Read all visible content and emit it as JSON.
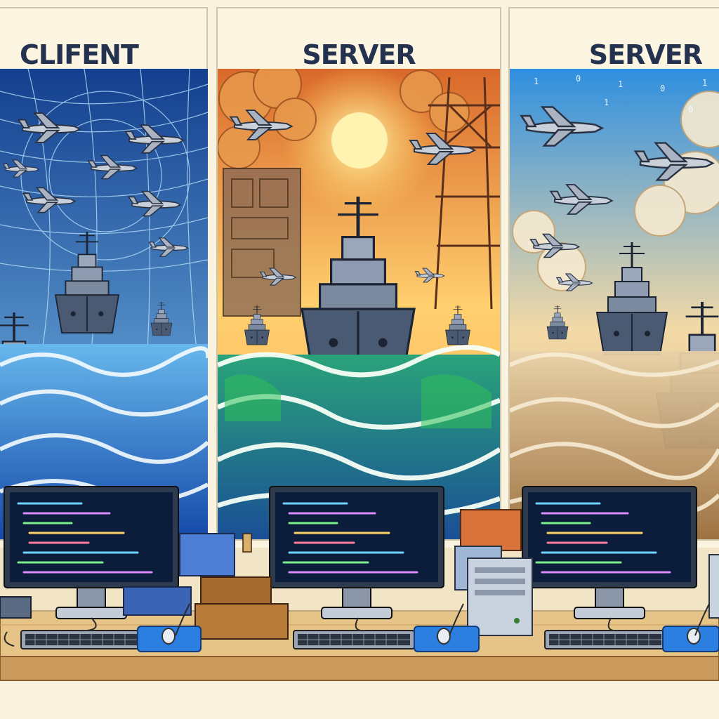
{
  "panels": [
    {
      "title": "CLIFENT",
      "theme": "blue-grid",
      "sky": [
        "#1b4fa6",
        "#6fb8ea"
      ],
      "sea": [
        "#1c5fc0",
        "#3aa0e8"
      ]
    },
    {
      "title": "SERVER",
      "theme": "sunset",
      "sky": [
        "#e9772a",
        "#ffd77a"
      ],
      "sea": [
        "#1a7a9a",
        "#3bc45a"
      ]
    },
    {
      "title": "SERVER",
      "theme": "sand-storm",
      "sky": [
        "#3b9be0",
        "#f3d6a0"
      ],
      "sea": [
        "#b38a55",
        "#e8d3ad"
      ]
    }
  ],
  "colors": {
    "frame": "#cfc5a8",
    "desk": "#e6c387",
    "desk_edge": "#b0824a",
    "monitor": "#2e3a4e",
    "screen": "#0b1d3a",
    "mousepad": "#2a7fe0",
    "title_ink": "#24324f"
  },
  "icons": {
    "warship": "battleship-icon",
    "jet": "fighter-jet-icon",
    "monitor": "monitor-icon",
    "keyboard": "keyboard-icon",
    "mouse": "mouse-icon",
    "book": "book-stack-icon",
    "tower": "server-tower-icon"
  }
}
